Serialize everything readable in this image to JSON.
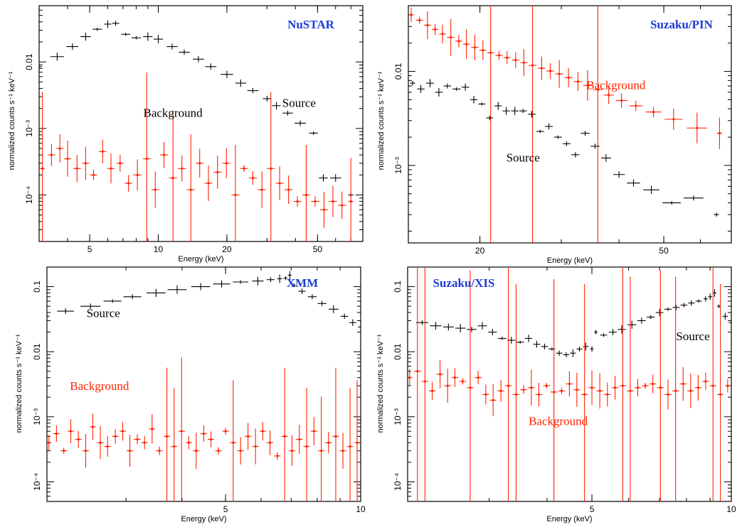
{
  "colors": {
    "source": "#000000",
    "background": "#ff2200",
    "title": "#1e3cd2"
  },
  "chart_data": [
    {
      "type": "scatter",
      "title": "NuSTAR",
      "xlabel": "Energy (keV)",
      "ylabel": "normalized counts s⁻¹ keV⁻¹",
      "xscale": "log",
      "yscale": "log",
      "xlim": [
        3,
        79
      ],
      "ylim": [
        2e-05,
        0.07
      ],
      "xticks": [
        {
          "v": 5,
          "label": "5"
        },
        {
          "v": 10,
          "label": "10"
        },
        {
          "v": 20,
          "label": "20"
        },
        {
          "v": 50,
          "label": "50"
        }
      ],
      "yticks": [
        {
          "v": 0.01,
          "label": "0.01"
        },
        {
          "v": 0.001,
          "label": "10⁻³"
        },
        {
          "v": 0.0001,
          "label": "10⁻⁴"
        }
      ],
      "annotations": [
        {
          "text": "Source",
          "x": 35,
          "y": 0.0021,
          "color": "#000000"
        },
        {
          "text": "Background",
          "x": 8.6,
          "y": 0.0015,
          "color": "#000000"
        }
      ],
      "series": [
        {
          "role": "source",
          "color": "#000000",
          "x": [
            3.0,
            3.6,
            4.2,
            4.8,
            5.4,
            6.0,
            6.5,
            7.2,
            8.0,
            9.0,
            10.0,
            11.5,
            13.0,
            15.0,
            17.0,
            20.0,
            23.0,
            26.0,
            30.0,
            33.0,
            37.0,
            42.0,
            48.0,
            53.0,
            60.0,
            70.0
          ],
          "y": [
            0.0085,
            0.012,
            0.017,
            0.024,
            0.031,
            0.037,
            0.038,
            0.026,
            0.023,
            0.024,
            0.022,
            0.017,
            0.014,
            0.011,
            0.0085,
            0.0065,
            0.0048,
            0.0037,
            0.0028,
            0.0022,
            0.0017,
            0.0012,
            0.00085,
            0.00018,
            0.00018,
            0.0001
          ]
        },
        {
          "role": "background",
          "color": "#ff2200",
          "x": [
            3.1,
            3.4,
            3.7,
            4.0,
            4.4,
            4.8,
            5.2,
            5.7,
            6.2,
            6.8,
            7.4,
            8.1,
            8.9,
            9.7,
            10.6,
            11.6,
            12.7,
            13.9,
            15.2,
            16.6,
            18.2,
            19.9,
            21.8,
            23.8,
            26.0,
            28.5,
            31.2,
            34.1,
            37.3,
            40.8,
            44.6,
            48.8,
            53.4,
            58.4,
            64.0,
            70.0
          ],
          "y": [
            0.00025,
            0.0004,
            0.0005,
            0.00035,
            0.00025,
            0.0003,
            0.0002,
            0.00045,
            0.00025,
            0.0003,
            0.00015,
            0.0002,
            0.00035,
            0.00012,
            0.0004,
            0.00018,
            0.00025,
            0.00012,
            0.0003,
            0.00015,
            0.00022,
            0.0003,
            0.0001,
            0.00025,
            0.00018,
            0.00012,
            0.00025,
            0.00015,
            0.00012,
            8e-05,
            0.0001,
            8e-05,
            6e-05,
            8e-05,
            7e-05,
            8e-05
          ]
        }
      ]
    },
    {
      "type": "scatter",
      "title": "Suzaku/PIN",
      "xlabel": "Energy (keV)",
      "ylabel": "normalized counts s⁻¹ keV⁻¹",
      "xscale": "log",
      "yscale": "log",
      "xlim": [
        14,
        70
      ],
      "ylim": [
        0.00015,
        0.05
      ],
      "xticks": [
        {
          "v": 20,
          "label": "20"
        },
        {
          "v": 50,
          "label": "50"
        }
      ],
      "yticks": [
        {
          "v": 0.01,
          "label": "0.01"
        },
        {
          "v": 0.001,
          "label": "10⁻³"
        }
      ],
      "annotations": [
        {
          "text": "Background",
          "x": 34,
          "y": 0.0065,
          "color": "#ff2200"
        },
        {
          "text": "Source",
          "x": 22.8,
          "y": 0.0011,
          "color": "#000000"
        }
      ],
      "series": [
        {
          "role": "background",
          "color": "#ff2200",
          "x": [
            14.2,
            14.8,
            15.4,
            16.0,
            16.6,
            17.3,
            18.0,
            18.7,
            19.5,
            20.3,
            21.1,
            22.0,
            22.9,
            23.9,
            24.9,
            26.0,
            27.2,
            28.4,
            29.7,
            31.1,
            32.6,
            34.2,
            36.0,
            38.0,
            40.5,
            43.5,
            47.5,
            52.5,
            59.0,
            66.0
          ],
          "y": [
            0.04,
            0.035,
            0.031,
            0.028,
            0.025,
            0.023,
            0.021,
            0.0195,
            0.018,
            0.0168,
            0.0158,
            0.0148,
            0.014,
            0.0132,
            0.0124,
            0.0116,
            0.0108,
            0.0101,
            0.0094,
            0.0086,
            0.0078,
            0.0071,
            0.0064,
            0.0056,
            0.0049,
            0.0043,
            0.0037,
            0.0031,
            0.0025,
            0.0022
          ]
        },
        {
          "role": "source",
          "color": "#000000",
          "x": [
            14.3,
            14.9,
            15.6,
            16.3,
            17.0,
            17.8,
            18.6,
            19.4,
            20.2,
            21.0,
            21.9,
            22.8,
            23.8,
            24.8,
            25.9,
            27.0,
            28.2,
            29.5,
            30.8,
            32.2,
            33.8,
            35.5,
            37.5,
            40.0,
            43.0,
            47.0,
            52.0,
            58.0,
            65.0
          ],
          "y": [
            0.0075,
            0.0065,
            0.0075,
            0.006,
            0.007,
            0.0065,
            0.0068,
            0.005,
            0.0045,
            0.0032,
            0.0043,
            0.0038,
            0.0038,
            0.0038,
            0.0035,
            0.0023,
            0.0026,
            0.002,
            0.0017,
            0.0013,
            0.0022,
            0.0016,
            0.0012,
            0.0008,
            0.00065,
            0.00055,
            0.0004,
            0.00045,
            0.0003
          ]
        }
      ]
    },
    {
      "type": "scatter",
      "title": "XMM",
      "xlabel": "Energy (keV)",
      "ylabel": "normalized counts s⁻¹ keV⁻¹",
      "xscale": "log",
      "yscale": "log",
      "xlim": [
        2,
        10
      ],
      "ylim": [
        5e-05,
        0.2
      ],
      "xticks": [
        {
          "v": 5,
          "label": "5"
        },
        {
          "v": 10,
          "label": "10"
        }
      ],
      "yticks": [
        {
          "v": 0.1,
          "label": "0.1"
        },
        {
          "v": 0.01,
          "label": "0.01"
        },
        {
          "v": 0.001,
          "label": "10⁻³"
        },
        {
          "v": 0.0001,
          "label": "10⁻⁴"
        }
      ],
      "annotations": [
        {
          "text": "Source",
          "x": 2.45,
          "y": 0.034,
          "color": "#000000"
        },
        {
          "text": "Background",
          "x": 2.25,
          "y": 0.0026,
          "color": "#ff2200"
        }
      ],
      "series": [
        {
          "role": "source",
          "color": "#000000",
          "x": [
            2.0,
            2.2,
            2.5,
            2.8,
            3.1,
            3.5,
            3.9,
            4.4,
            4.9,
            5.4,
            5.9,
            6.3,
            6.6,
            6.8,
            6.95,
            7.1,
            7.4,
            7.8,
            8.2,
            8.7,
            9.2,
            9.6,
            10.0
          ],
          "y": [
            0.035,
            0.042,
            0.05,
            0.06,
            0.07,
            0.08,
            0.09,
            0.1,
            0.11,
            0.118,
            0.122,
            0.128,
            0.132,
            0.135,
            0.15,
            0.105,
            0.085,
            0.07,
            0.055,
            0.045,
            0.035,
            0.028,
            0.024
          ]
        },
        {
          "role": "background",
          "color": "#ff2200",
          "x": [
            2.02,
            2.1,
            2.18,
            2.26,
            2.35,
            2.44,
            2.53,
            2.63,
            2.73,
            2.84,
            2.95,
            3.06,
            3.18,
            3.3,
            3.43,
            3.56,
            3.7,
            3.84,
            3.99,
            4.14,
            4.3,
            4.47,
            4.64,
            4.82,
            5.0,
            5.2,
            5.4,
            5.61,
            5.83,
            6.05,
            6.28,
            6.52,
            6.77,
            7.03,
            7.3,
            7.58,
            7.87,
            8.17,
            8.48,
            8.8,
            9.13,
            9.47,
            9.82
          ],
          "y": [
            0.0004,
            0.00055,
            0.0003,
            0.0006,
            0.00045,
            0.0003,
            0.0007,
            0.0004,
            0.00035,
            0.0005,
            0.0006,
            0.0003,
            0.00045,
            0.0004,
            0.00065,
            0.0003,
            0.0005,
            0.00035,
            0.0006,
            0.0004,
            0.0003,
            0.00055,
            0.00045,
            0.0003,
            0.0006,
            0.0004,
            0.0003,
            0.0005,
            0.00035,
            0.0006,
            0.0004,
            0.00025,
            0.0005,
            0.0003,
            0.00045,
            0.00035,
            0.0006,
            0.0003,
            0.0004,
            0.0005,
            0.0003,
            0.00035,
            0.0004
          ]
        }
      ]
    },
    {
      "type": "scatter",
      "title": "Suzaku/XIS",
      "xlabel": "Energy (keV)",
      "ylabel": "normalized counts s⁻¹ keV⁻¹",
      "xscale": "log",
      "yscale": "log",
      "xlim": [
        2,
        10
      ],
      "ylim": [
        5e-05,
        0.2
      ],
      "xticks": [
        {
          "v": 5,
          "label": "5"
        },
        {
          "v": 10,
          "label": "10"
        }
      ],
      "yticks": [
        {
          "v": 0.1,
          "label": "0.1"
        },
        {
          "v": 0.01,
          "label": "0.01"
        },
        {
          "v": 0.001,
          "label": "10⁻³"
        },
        {
          "v": 0.0001,
          "label": "10⁻⁴"
        }
      ],
      "annotations": [
        {
          "text": "Source",
          "x": 7.6,
          "y": 0.015,
          "color": "#000000"
        },
        {
          "text": "Background",
          "x": 3.65,
          "y": 0.00075,
          "color": "#ff2200"
        }
      ],
      "series": [
        {
          "role": "source",
          "color": "#000000",
          "x": [
            2.0,
            2.15,
            2.3,
            2.45,
            2.6,
            2.75,
            2.9,
            3.05,
            3.2,
            3.35,
            3.5,
            3.65,
            3.8,
            3.95,
            4.1,
            4.25,
            4.4,
            4.55,
            4.7,
            4.85,
            5.0,
            5.1,
            5.3,
            5.55,
            5.8,
            6.1,
            6.4,
            6.7,
            7.0,
            7.3,
            7.6,
            7.9,
            8.2,
            8.5,
            8.8,
            9.0,
            9.2,
            9.4,
            9.7,
            10.0
          ],
          "y": [
            0.03,
            0.028,
            0.025,
            0.024,
            0.023,
            0.022,
            0.025,
            0.02,
            0.016,
            0.015,
            0.014,
            0.016,
            0.013,
            0.012,
            0.011,
            0.0095,
            0.009,
            0.0095,
            0.011,
            0.012,
            0.011,
            0.02,
            0.018,
            0.02,
            0.022,
            0.026,
            0.03,
            0.034,
            0.04,
            0.045,
            0.048,
            0.052,
            0.056,
            0.06,
            0.065,
            0.07,
            0.08,
            0.05,
            0.035,
            0.028
          ]
        },
        {
          "role": "background",
          "color": "#ff2200",
          "x": [
            2.02,
            2.1,
            2.18,
            2.26,
            2.35,
            2.44,
            2.53,
            2.63,
            2.73,
            2.84,
            2.95,
            3.06,
            3.18,
            3.3,
            3.43,
            3.56,
            3.7,
            3.84,
            3.99,
            4.14,
            4.3,
            4.47,
            4.64,
            4.82,
            5.0,
            5.2,
            5.4,
            5.61,
            5.83,
            6.05,
            6.28,
            6.52,
            6.77,
            7.03,
            7.3,
            7.58,
            7.87,
            8.17,
            8.48,
            8.8,
            9.13,
            9.47,
            9.82
          ],
          "y": [
            0.004,
            0.005,
            0.0035,
            0.0025,
            0.0045,
            0.003,
            0.004,
            0.0035,
            0.0028,
            0.004,
            0.0022,
            0.0018,
            0.0025,
            0.003,
            0.0022,
            0.0026,
            0.0028,
            0.0022,
            0.003,
            0.0024,
            0.0025,
            0.0032,
            0.0026,
            0.0022,
            0.0028,
            0.0025,
            0.0022,
            0.0028,
            0.003,
            0.0025,
            0.0028,
            0.003,
            0.0032,
            0.0028,
            0.0022,
            0.0025,
            0.0032,
            0.0025,
            0.0028,
            0.0035,
            0.003,
            0.0022,
            0.003
          ]
        }
      ]
    }
  ]
}
